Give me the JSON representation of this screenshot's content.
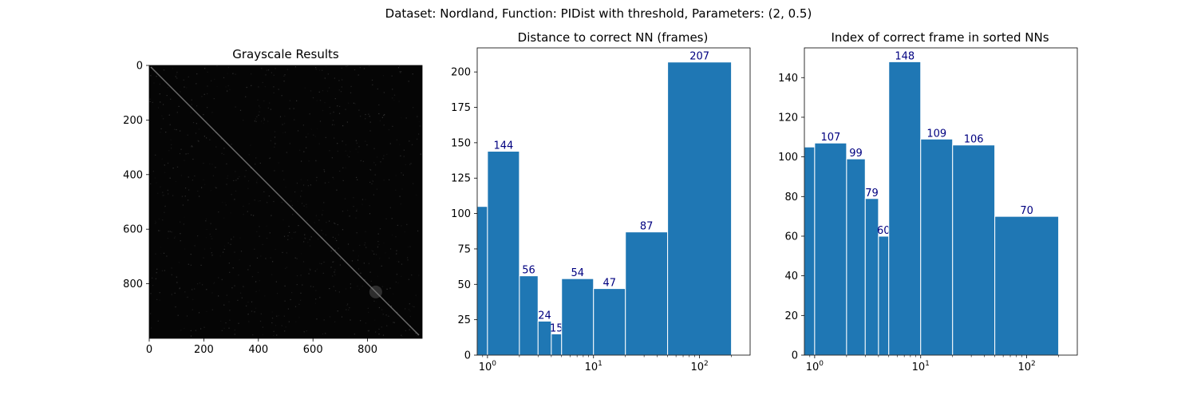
{
  "suptitle": "Dataset:  Nordland,  Function:  PIDist with threshold, Parameters: (2, 0.5)",
  "colors": {
    "bar": "#1f77b4",
    "bar_edge": "#ffffff",
    "bar_label": "#000080",
    "axis": "#000000"
  },
  "chart_data": [
    {
      "type": "heatmap",
      "title": "Grayscale Results",
      "colormap": "gray",
      "description_of_content": "dark matrix with a faint bright main diagonal",
      "xlim": [
        0,
        1000
      ],
      "ylim": [
        1000,
        0
      ],
      "xticks": [
        0,
        200,
        400,
        600,
        800
      ],
      "yticks": [
        0,
        200,
        400,
        600,
        800
      ],
      "xtick_labels": [
        "0",
        "200",
        "400",
        "600",
        "800"
      ],
      "ytick_labels": [
        "0",
        "200",
        "400",
        "600",
        "800"
      ]
    },
    {
      "type": "bar",
      "title": "Distance to correct NN (frames)",
      "xscale": "log",
      "bins": [
        [
          0,
          1
        ],
        [
          1,
          2
        ],
        [
          2,
          3
        ],
        [
          3,
          4
        ],
        [
          4,
          5
        ],
        [
          5,
          10
        ],
        [
          10,
          20
        ],
        [
          20,
          50
        ],
        [
          50,
          200
        ]
      ],
      "values": [
        105,
        144,
        56,
        24,
        15,
        54,
        47,
        87,
        207
      ],
      "data_labels": [
        "",
        "144",
        "56",
        "24",
        "15",
        "54",
        "47",
        "87",
        "207"
      ],
      "xlim": [
        0.8,
        300
      ],
      "ylim": [
        0,
        217
      ],
      "yticks": [
        0,
        25,
        50,
        75,
        100,
        125,
        150,
        175,
        200
      ],
      "ytick_labels": [
        "0",
        "25",
        "50",
        "75",
        "100",
        "125",
        "150",
        "175",
        "200"
      ],
      "xticks": [
        1,
        10,
        100
      ],
      "xtick_labels": [
        "10^0",
        "10^1",
        "10^2"
      ]
    },
    {
      "type": "bar",
      "title": "Index of correct frame in sorted NNs",
      "xscale": "log",
      "bins": [
        [
          0,
          1
        ],
        [
          1,
          2
        ],
        [
          2,
          3
        ],
        [
          3,
          4
        ],
        [
          4,
          5
        ],
        [
          5,
          10
        ],
        [
          10,
          20
        ],
        [
          20,
          50
        ],
        [
          50,
          200
        ]
      ],
      "values": [
        105,
        107,
        99,
        79,
        60,
        148,
        109,
        106,
        70
      ],
      "data_labels": [
        "",
        "107",
        "99",
        "79",
        "60",
        "148",
        "109",
        "106",
        "70"
      ],
      "xlim": [
        0.8,
        300
      ],
      "ylim": [
        0,
        155
      ],
      "yticks": [
        0,
        20,
        40,
        60,
        80,
        100,
        120,
        140
      ],
      "ytick_labels": [
        "0",
        "20",
        "40",
        "60",
        "80",
        "100",
        "120",
        "140"
      ],
      "xticks": [
        1,
        10,
        100
      ],
      "xtick_labels": [
        "10^0",
        "10^1",
        "10^2"
      ]
    }
  ]
}
